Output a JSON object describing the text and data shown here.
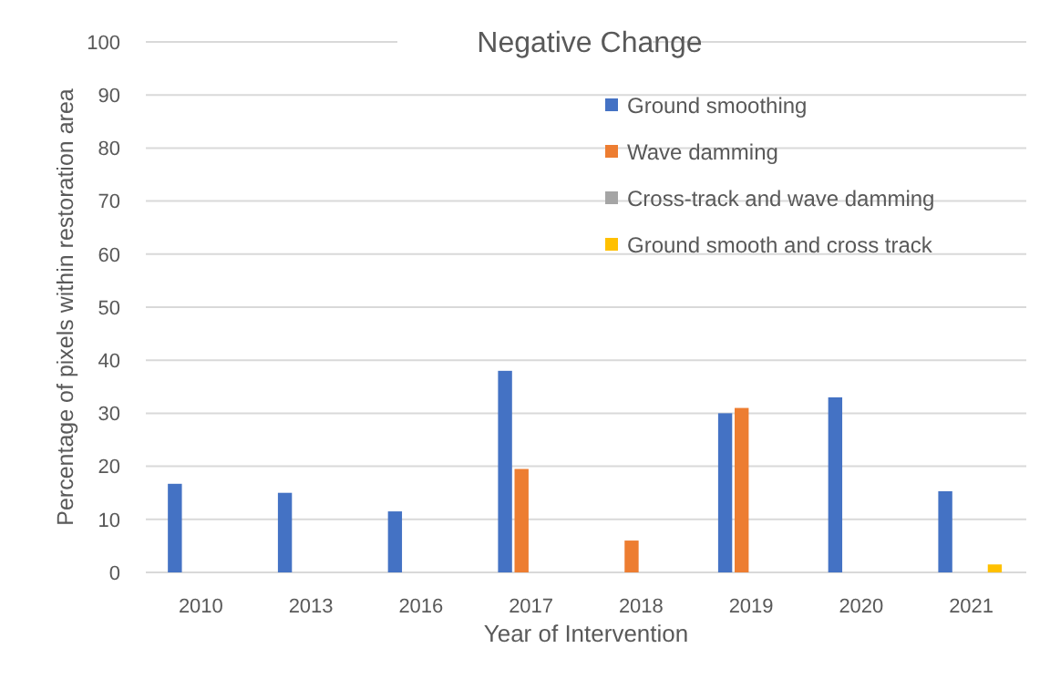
{
  "chart_data": {
    "type": "bar",
    "title": "Negative Change",
    "xlabel": "Year of Intervention",
    "ylabel": "Percentage of pixels within restoration area",
    "categories": [
      "2010",
      "2013",
      "2016",
      "2017",
      "2018",
      "2019",
      "2020",
      "2021"
    ],
    "series": [
      {
        "name": "Ground smoothing",
        "color": "#4472c4",
        "values": [
          16.7,
          15,
          11.5,
          38,
          null,
          30,
          33,
          15.3
        ]
      },
      {
        "name": "Wave damming",
        "color": "#ed7d31",
        "values": [
          null,
          null,
          null,
          19.5,
          6,
          31,
          null,
          null
        ]
      },
      {
        "name": "Cross-track and wave damming",
        "color": "#a5a5a5",
        "values": [
          null,
          null,
          null,
          null,
          null,
          null,
          null,
          null
        ]
      },
      {
        "name": "Ground smooth and cross track",
        "color": "#ffc000",
        "values": [
          null,
          null,
          null,
          null,
          null,
          null,
          null,
          1.5
        ]
      }
    ],
    "ylim": [
      0,
      100
    ],
    "yticks": [
      0,
      10,
      20,
      30,
      40,
      50,
      60,
      70,
      80,
      90,
      100
    ],
    "grid": "y",
    "legend": "top right"
  }
}
